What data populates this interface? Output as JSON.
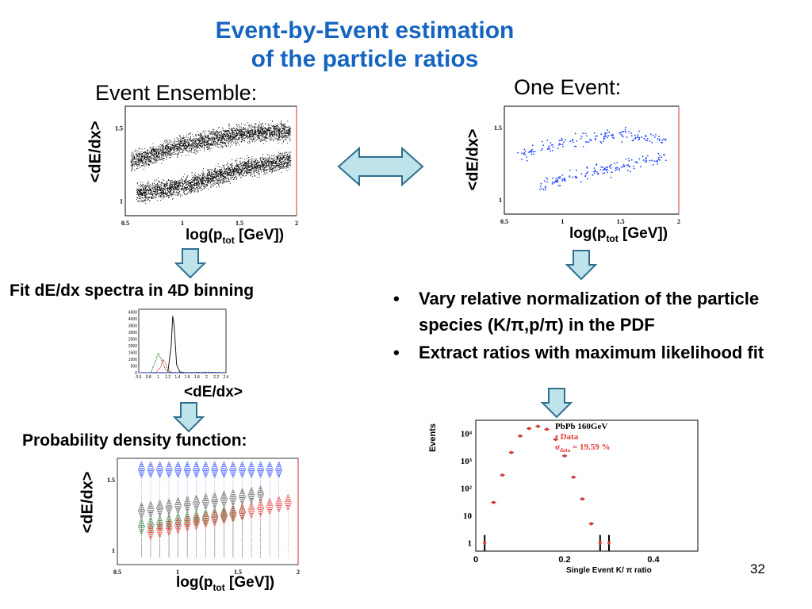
{
  "slide": {
    "title_line1": "Event-by-Event estimation",
    "title_line2": "of the particle ratios",
    "ensemble_heading": "Event Ensemble:",
    "one_event_heading": "One Event:",
    "page_number": "32",
    "colors": {
      "title": "#1565c0",
      "arrow_fill": "#bfe3ea",
      "arrow_stroke": "#2f6f8f"
    }
  },
  "ensemble_plot": {
    "ylabel": "<dE/dx>",
    "xlabel_main": "log(p",
    "xlabel_sub": "tot",
    "xlabel_unit": " [GeV])",
    "xticks": [
      "0.5",
      "1",
      "1.5",
      "2"
    ],
    "yticks": [
      "1.5",
      "1"
    ]
  },
  "one_event_plot": {
    "ylabel": "<dE/dx>",
    "xlabel_main": "log(p",
    "xlabel_sub": "tot",
    "xlabel_unit": " [GeV])",
    "xticks": [
      "0.5",
      "1",
      "1.5",
      "2"
    ],
    "yticks": [
      "1.5",
      "1"
    ]
  },
  "fit_section": {
    "caption": "Fit dE/dx spectra in 4D binning",
    "xlabel": "<dE/dx>",
    "yticks": [
      "4500",
      "4000",
      "3500",
      "3000",
      "2500",
      "2000",
      "1500",
      "1000",
      "500",
      "0"
    ],
    "xticks": [
      "0.6",
      "0.8",
      "1",
      "1.2",
      "1.4",
      "1.6",
      "1.8",
      "2",
      "2.2",
      "2.4"
    ]
  },
  "pdf_section": {
    "caption": "Probability density function:",
    "ylabel": "<dE/dx>",
    "xlabel_main": "log(p",
    "xlabel_sub": "tot",
    "xlabel_unit": " [GeV])",
    "xticks": [
      "0.5",
      "1",
      "1.5",
      "2"
    ],
    "yticks": [
      "1.5",
      "1"
    ]
  },
  "bullets": [
    {
      "text": "Vary relative normalization of the particle species (K/π,p/π) in the PDF"
    },
    {
      "text": "Extract  ratios with maximum likelihood fit"
    }
  ],
  "ratio_plot": {
    "ylabel": "Events",
    "xlabel": "Single Event K/ π ratio",
    "legend_title": "PbPb 160GeV",
    "legend_data": "Data",
    "legend_sigma": "σ",
    "legend_sigma_sub": "data",
    "legend_sigma_value": "= 19.59 %",
    "yticks": [
      "10⁴",
      "10³",
      "10²",
      "10",
      "1"
    ],
    "xticks": [
      "0",
      "0.2",
      "0.4"
    ]
  },
  "chart_data": [
    {
      "type": "scatter",
      "xlabel": "log(ptot [GeV])",
      "ylabel": "<dE/dx>",
      "xlim": [
        0.5,
        2
      ],
      "ylim": [
        0.9,
        1.65
      ],
      "bands": [
        {
          "x": [
            0.55,
            1.0,
            1.5,
            1.95
          ],
          "y": [
            1.27,
            1.38,
            1.46,
            1.48
          ]
        },
        {
          "x": [
            0.6,
            1.0,
            1.5,
            1.95
          ],
          "y": [
            1.05,
            1.1,
            1.22,
            1.28
          ]
        }
      ]
    },
    {
      "type": "scatter",
      "xlabel": "log(ptot [GeV])",
      "ylabel": "<dE/dx>",
      "xlim": [
        0.5,
        2
      ],
      "ylim": [
        0.9,
        1.65
      ],
      "bands": [
        {
          "x": [
            0.6,
            1.0,
            1.5,
            1.9
          ],
          "y": [
            1.3,
            1.4,
            1.45,
            1.42
          ]
        },
        {
          "x": [
            0.8,
            1.2,
            1.6,
            1.9
          ],
          "y": [
            1.1,
            1.18,
            1.25,
            1.3
          ]
        }
      ]
    },
    {
      "type": "line",
      "xlabel": "<dE/dx>",
      "xlim": [
        0.6,
        2.4
      ],
      "ylim": [
        0,
        4700
      ],
      "series": [
        {
          "color": "#000000",
          "x": [
            1.2,
            1.27,
            1.3,
            1.33,
            1.38,
            1.45,
            1.55
          ],
          "y": [
            50,
            2000,
            4200,
            3500,
            600,
            60,
            0
          ]
        },
        {
          "color": "#e53935",
          "x": [
            0.95,
            1.05,
            1.1,
            1.15,
            1.2,
            1.3
          ],
          "y": [
            0,
            400,
            1000,
            700,
            200,
            0
          ]
        },
        {
          "color": "#2e7d32",
          "x": [
            0.85,
            0.95,
            1.0,
            1.05,
            1.15,
            1.25
          ],
          "y": [
            0,
            900,
            1450,
            1100,
            250,
            0
          ]
        },
        {
          "color": "#1e40ff",
          "x": [
            0.6,
            1.0,
            1.5,
            2.0,
            2.4
          ],
          "y": [
            0,
            10,
            20,
            40,
            10
          ]
        }
      ]
    },
    {
      "type": "scatter",
      "title": "PbPb 160GeV",
      "xlabel": "Single Event K/ π ratio",
      "ylabel": "Events",
      "log_y": true,
      "xlim": [
        0,
        0.5
      ],
      "ylim": [
        0.5,
        30000
      ],
      "series": [
        {
          "name": "Data",
          "color": "#e53935",
          "x": [
            0.02,
            0.04,
            0.06,
            0.08,
            0.1,
            0.12,
            0.14,
            0.16,
            0.18,
            0.2,
            0.22,
            0.24,
            0.26,
            0.28,
            0.3
          ],
          "y": [
            1,
            30,
            300,
            2000,
            8000,
            15000,
            18000,
            14000,
            6000,
            1500,
            250,
            40,
            5,
            1,
            1
          ]
        }
      ]
    }
  ]
}
